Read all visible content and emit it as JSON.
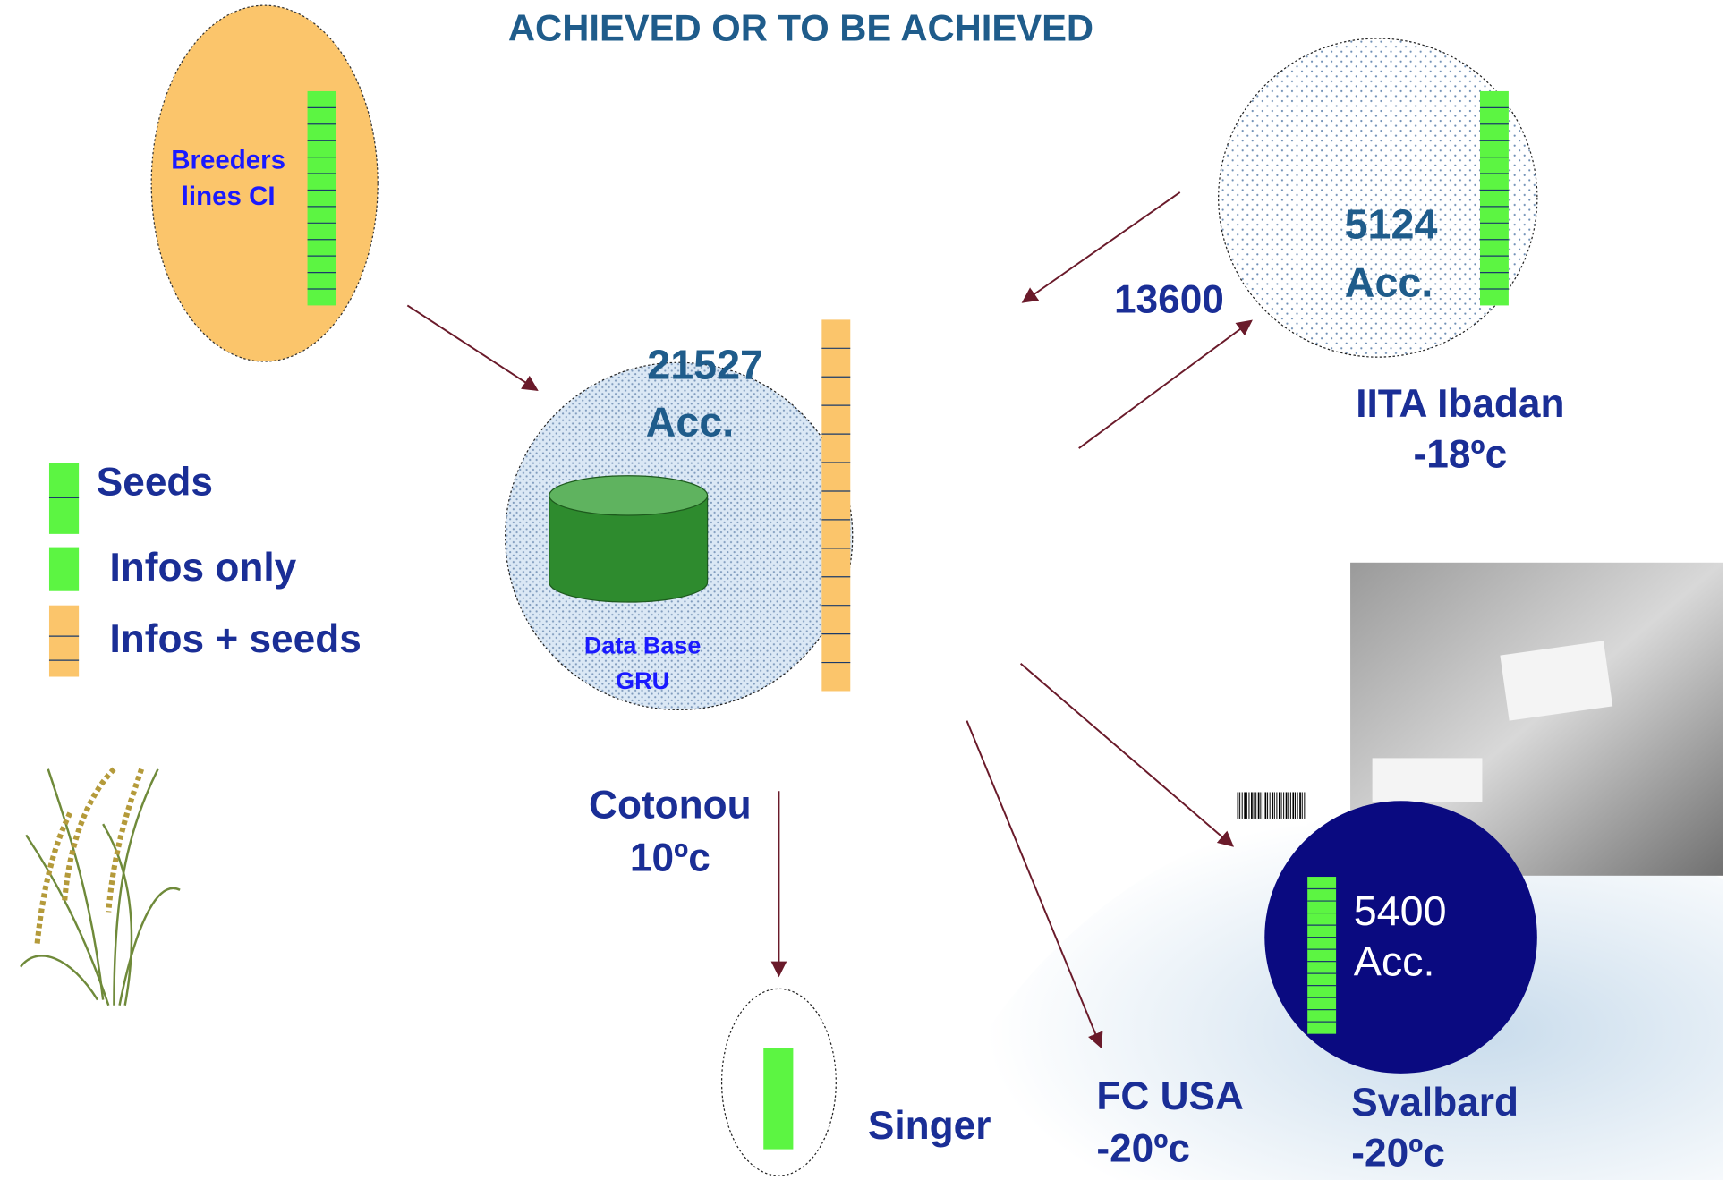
{
  "title": "ACHIEVED OR TO BE ACHIEVED",
  "legend": [
    {
      "label": "Seeds"
    },
    {
      "label": "Infos only"
    },
    {
      "label": "Infos + seeds"
    }
  ],
  "nodes": [
    {
      "label": [
        "Breeders",
        "lines  CI"
      ]
    },
    {
      "count": 21527,
      "unit": "Acc.",
      "database": [
        "Data Base",
        "GRU"
      ],
      "site": "Cotonou",
      "temp": "10ºc"
    },
    {
      "count": 5124,
      "unit": "Acc.",
      "site": "IITA Ibadan",
      "temp": "-18ºc"
    },
    {
      "count": 5400,
      "unit": "Acc.",
      "site": "Svalbard",
      "temp": "-20ºc"
    },
    {
      "site": "FC USA",
      "temp": "-20ºc"
    },
    {
      "site": "Singer"
    }
  ],
  "edges": [
    {
      "label": 13600
    }
  ]
}
